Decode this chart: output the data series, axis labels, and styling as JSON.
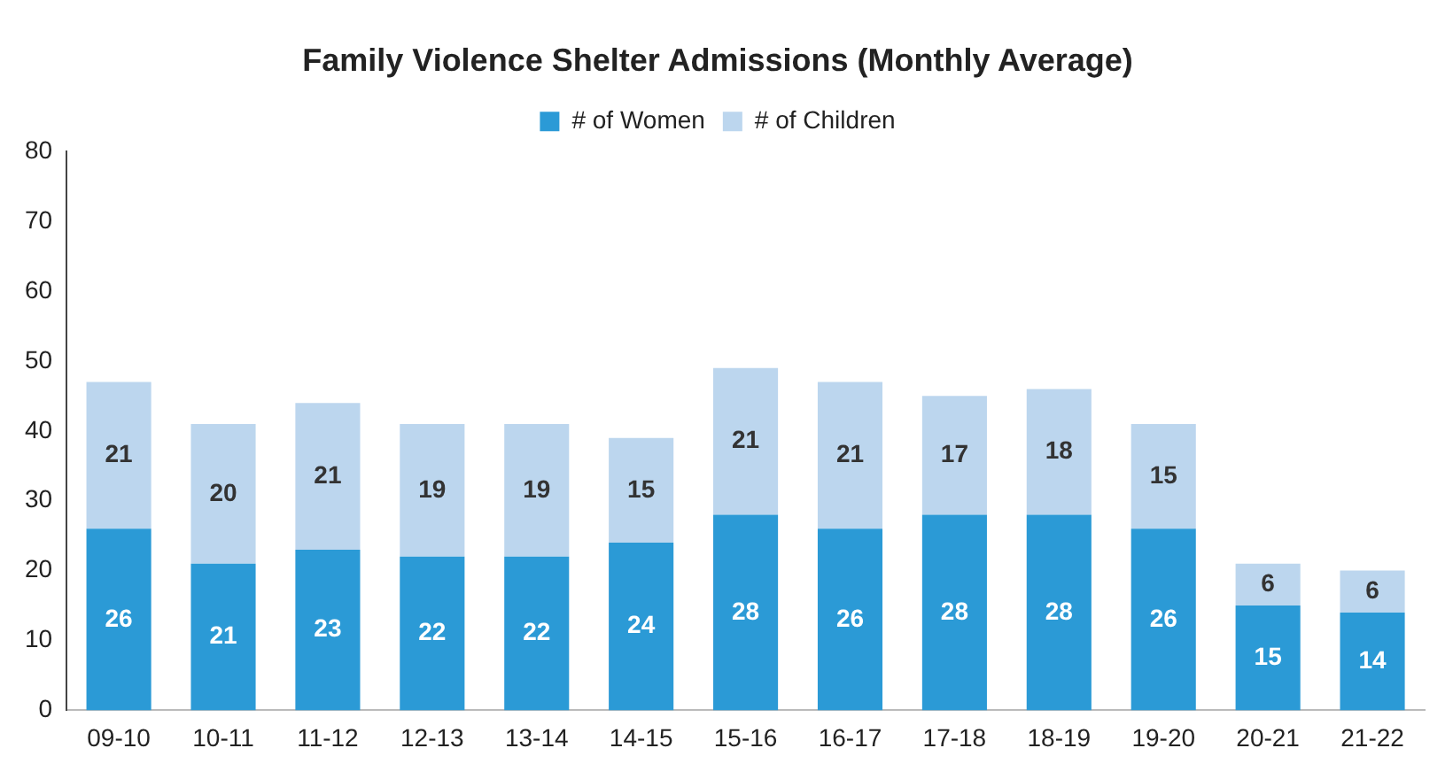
{
  "chart_data": {
    "type": "bar",
    "title": "Family Violence Shelter Admissions (Monthly Average)",
    "categories": [
      "09-10",
      "10-11",
      "11-12",
      "12-13",
      "13-14",
      "14-15",
      "15-16",
      "16-17",
      "17-18",
      "18-19",
      "19-20",
      "20-21",
      "21-22"
    ],
    "series": [
      {
        "name": "# of Women",
        "color": "#2b9ad6",
        "values": [
          26,
          21,
          23,
          22,
          22,
          24,
          28,
          26,
          28,
          28,
          26,
          15,
          14
        ]
      },
      {
        "name": "# of Children",
        "color": "#bcd6ee",
        "values": [
          21,
          20,
          21,
          19,
          19,
          15,
          21,
          21,
          17,
          18,
          15,
          6,
          6
        ]
      }
    ],
    "stacked": true,
    "ylim": [
      0,
      80
    ],
    "yticks": [
      0,
      10,
      20,
      30,
      40,
      50,
      60,
      70,
      80
    ],
    "grid": false,
    "legend": "top",
    "data_labels": true
  }
}
